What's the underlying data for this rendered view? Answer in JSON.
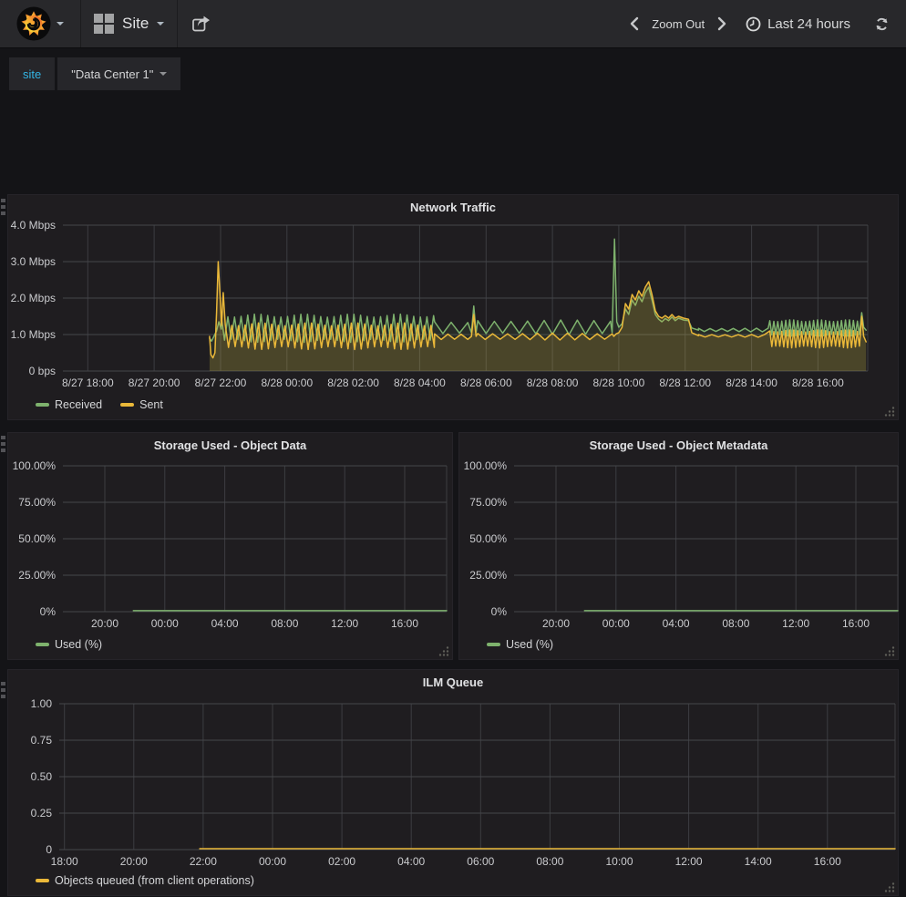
{
  "navbar": {
    "dashboard_picker": {
      "label": "Site"
    },
    "zoom_out_label": "Zoom Out",
    "time_range_label": "Last 24 hours"
  },
  "submenu": {
    "variable_label": "site",
    "variable_value": "\"Data Center 1\""
  },
  "colors": {
    "accent_link": "#33b5e5",
    "series_green": "#7EB26D",
    "series_yellow": "#EAB839",
    "panel_bg": "#1f1d20",
    "grid_line": "#45464a"
  },
  "charts": {
    "network": {
      "type": "line",
      "title": "Network Traffic",
      "x_domain": [
        17.25,
        41.5
      ],
      "y_domain": [
        0,
        4
      ],
      "x_ticks": [
        [
          18,
          "8/27 18:00"
        ],
        [
          20,
          "8/27 20:00"
        ],
        [
          22,
          "8/27 22:00"
        ],
        [
          24,
          "8/28 00:00"
        ],
        [
          26,
          "8/28 02:00"
        ],
        [
          28,
          "8/28 04:00"
        ],
        [
          30,
          "8/28 06:00"
        ],
        [
          32,
          "8/28 08:00"
        ],
        [
          34,
          "8/28 10:00"
        ],
        [
          36,
          "8/28 12:00"
        ],
        [
          38,
          "8/28 14:00"
        ],
        [
          40,
          "8/28 16:00"
        ]
      ],
      "y_ticks": [
        [
          0,
          "0 bps"
        ],
        [
          1,
          "1.0 Mbps"
        ],
        [
          2,
          "2.0 Mbps"
        ],
        [
          3,
          "3.0 Mbps"
        ],
        [
          4,
          "4.0 Mbps"
        ]
      ],
      "series": [
        {
          "name": "Received",
          "color": "#7EB26D",
          "fill": 0.1,
          "segments": [
            {
              "type": "points",
              "pts": [
                [
                  21.67,
                  0.9
                ],
                [
                  21.73,
                  0.82
                ],
                [
                  21.8,
                  0.95
                ],
                [
                  21.88,
                  1.1
                ],
                [
                  21.95,
                  1.35
                ],
                [
                  22.02,
                  1.15
                ]
              ]
            },
            {
              "type": "osc",
              "t0": 22.02,
              "t1": 28.45,
              "lo": 0.83,
              "hi": 1.52,
              "period": 0.2
            },
            {
              "type": "osc",
              "t0": 28.45,
              "t1": 29.5,
              "lo": 1.02,
              "hi": 1.35,
              "period": 0.5
            },
            {
              "type": "points",
              "pts": [
                [
                  29.56,
                  1.05
                ],
                [
                  29.63,
                  1.78
                ],
                [
                  29.7,
                  1.05
                ]
              ]
            },
            {
              "type": "osc",
              "t0": 29.75,
              "t1": 33.75,
              "lo": 1.02,
              "hi": 1.38,
              "period": 0.5
            },
            {
              "type": "points",
              "pts": [
                [
                  33.8,
                  1.06
                ],
                [
                  33.87,
                  3.62
                ],
                [
                  33.94,
                  1.35
                ],
                [
                  34.0,
                  1.2
                ],
                [
                  34.1,
                  1.3
                ],
                [
                  34.2,
                  1.7
                ],
                [
                  34.3,
                  1.55
                ],
                [
                  34.4,
                  1.95
                ],
                [
                  34.5,
                  1.8
                ],
                [
                  34.6,
                  2.05
                ],
                [
                  34.7,
                  1.9
                ],
                [
                  34.8,
                  2.15
                ],
                [
                  34.9,
                  2.3
                ],
                [
                  35.0,
                  1.95
                ],
                [
                  35.1,
                  1.55
                ],
                [
                  35.2,
                  1.42
                ],
                [
                  35.3,
                  1.35
                ],
                [
                  35.4,
                  1.44
                ],
                [
                  35.5,
                  1.38
                ],
                [
                  35.6,
                  1.48
                ],
                [
                  35.7,
                  1.38
                ],
                [
                  35.8,
                  1.45
                ],
                [
                  35.95,
                  1.4
                ],
                [
                  36.1,
                  1.38
                ],
                [
                  36.2,
                  1.18
                ],
                [
                  36.4,
                  1.12
                ]
              ]
            },
            {
              "type": "osc",
              "t0": 36.4,
              "t1": 38.55,
              "lo": 1.08,
              "hi": 1.17,
              "period": 0.35
            },
            {
              "type": "osc",
              "t0": 38.55,
              "t1": 41.28,
              "lo": 0.98,
              "hi": 1.38,
              "period": 0.12
            },
            {
              "type": "points",
              "pts": [
                [
                  41.32,
                  1.6
                ],
                [
                  41.38,
                  1.2
                ],
                [
                  41.45,
                  1.12
                ]
              ]
            }
          ]
        },
        {
          "name": "Sent",
          "color": "#EAB839",
          "fill": 0.18,
          "segments": [
            {
              "type": "points",
              "pts": [
                [
                  21.67,
                  0.95
                ],
                [
                  21.71,
                  0.45
                ],
                [
                  21.77,
                  0.36
                ],
                [
                  21.83,
                  0.5
                ],
                [
                  21.88,
                  1.6
                ],
                [
                  21.93,
                  3.0
                ],
                [
                  21.99,
                  2.0
                ],
                [
                  22.03,
                  1.25
                ],
                [
                  22.08,
                  2.15
                ],
                [
                  22.14,
                  1.3
                ]
              ]
            },
            {
              "type": "osc",
              "t0": 22.14,
              "t1": 28.45,
              "lo": 0.63,
              "hi": 1.28,
              "period": 0.2
            },
            {
              "type": "osc",
              "t0": 28.45,
              "t1": 29.5,
              "lo": 0.86,
              "hi": 1.02,
              "period": 0.4
            },
            {
              "type": "points",
              "pts": [
                [
                  29.56,
                  0.95
                ],
                [
                  29.63,
                  1.55
                ],
                [
                  29.7,
                  0.95
                ]
              ]
            },
            {
              "type": "osc",
              "t0": 29.75,
              "t1": 33.8,
              "lo": 0.86,
              "hi": 1.03,
              "period": 0.45
            },
            {
              "type": "points",
              "pts": [
                [
                  33.85,
                  0.95
                ],
                [
                  33.92,
                  1.02
                ],
                [
                  34.0,
                  1.05
                ],
                [
                  34.1,
                  1.2
                ],
                [
                  34.2,
                  1.85
                ],
                [
                  34.3,
                  1.7
                ],
                [
                  34.4,
                  2.1
                ],
                [
                  34.5,
                  1.95
                ],
                [
                  34.6,
                  2.2
                ],
                [
                  34.7,
                  2.05
                ],
                [
                  34.8,
                  2.3
                ],
                [
                  34.9,
                  2.45
                ],
                [
                  35.0,
                  2.1
                ],
                [
                  35.1,
                  1.65
                ],
                [
                  35.2,
                  1.5
                ],
                [
                  35.3,
                  1.45
                ],
                [
                  35.4,
                  1.52
                ],
                [
                  35.5,
                  1.45
                ],
                [
                  35.6,
                  1.55
                ],
                [
                  35.7,
                  1.45
                ],
                [
                  35.8,
                  1.5
                ],
                [
                  35.95,
                  1.45
                ],
                [
                  36.1,
                  1.42
                ],
                [
                  36.2,
                  1.05
                ],
                [
                  36.4,
                  0.97
                ]
              ]
            },
            {
              "type": "osc",
              "t0": 36.4,
              "t1": 38.55,
              "lo": 0.93,
              "hi": 1.0,
              "period": 0.4
            },
            {
              "type": "osc",
              "t0": 38.55,
              "t1": 41.28,
              "lo": 0.66,
              "hi": 1.1,
              "period": 0.12
            },
            {
              "type": "points",
              "pts": [
                [
                  41.32,
                  1.5
                ],
                [
                  41.38,
                  0.95
                ],
                [
                  41.45,
                  0.8
                ]
              ]
            }
          ]
        }
      ]
    },
    "storage_data": {
      "type": "line",
      "title": "Storage Used - Object Data",
      "x_domain": [
        17.2,
        42.8
      ],
      "y_domain": [
        0,
        100
      ],
      "x_ticks": [
        [
          20,
          "20:00"
        ],
        [
          24,
          "00:00"
        ],
        [
          28,
          "04:00"
        ],
        [
          32,
          "08:00"
        ],
        [
          36,
          "12:00"
        ],
        [
          40,
          "16:00"
        ]
      ],
      "y_ticks": [
        [
          0,
          "0%"
        ],
        [
          25,
          "25.00%"
        ],
        [
          50,
          "50.00%"
        ],
        [
          75,
          "75.00%"
        ],
        [
          100,
          "100.00%"
        ]
      ],
      "series": [
        {
          "name": "Used (%)",
          "color": "#7EB26D",
          "fill": 0,
          "segments": [
            {
              "type": "points",
              "pts": [
                [
                  21.9,
                  0.7
                ],
                [
                  42.8,
                  0.7
                ]
              ]
            }
          ]
        }
      ]
    },
    "storage_meta": {
      "type": "line",
      "title": "Storage Used - Object Metadata",
      "x_domain": [
        17.2,
        42.8
      ],
      "y_domain": [
        0,
        100
      ],
      "x_ticks": [
        [
          20,
          "20:00"
        ],
        [
          24,
          "00:00"
        ],
        [
          28,
          "04:00"
        ],
        [
          32,
          "08:00"
        ],
        [
          36,
          "12:00"
        ],
        [
          40,
          "16:00"
        ]
      ],
      "y_ticks": [
        [
          0,
          "0%"
        ],
        [
          25,
          "25.00%"
        ],
        [
          50,
          "50.00%"
        ],
        [
          75,
          "75.00%"
        ],
        [
          100,
          "100.00%"
        ]
      ],
      "series": [
        {
          "name": "Used (%)",
          "color": "#7EB26D",
          "fill": 0,
          "segments": [
            {
              "type": "points",
              "pts": [
                [
                  21.9,
                  0.7
                ],
                [
                  42.8,
                  0.7
                ]
              ]
            }
          ]
        }
      ]
    },
    "ilm": {
      "type": "line",
      "title": "ILM Queue",
      "x_domain": [
        17.85,
        41.95
      ],
      "y_domain": [
        0,
        1
      ],
      "x_ticks": [
        [
          18,
          "18:00"
        ],
        [
          20,
          "20:00"
        ],
        [
          22,
          "22:00"
        ],
        [
          24,
          "00:00"
        ],
        [
          26,
          "02:00"
        ],
        [
          28,
          "04:00"
        ],
        [
          30,
          "06:00"
        ],
        [
          32,
          "08:00"
        ],
        [
          34,
          "10:00"
        ],
        [
          36,
          "12:00"
        ],
        [
          38,
          "14:00"
        ],
        [
          40,
          "16:00"
        ]
      ],
      "y_ticks": [
        [
          0,
          "0"
        ],
        [
          0.25,
          "0.25"
        ],
        [
          0.5,
          "0.50"
        ],
        [
          0.75,
          "0.75"
        ],
        [
          1,
          "1.00"
        ]
      ],
      "series": [
        {
          "name": "Objects queued (from client operations)",
          "color": "#EAB839",
          "fill": 0,
          "segments": [
            {
              "type": "points",
              "pts": [
                [
                  21.9,
                  0.006
                ],
                [
                  41.95,
                  0.006
                ]
              ]
            }
          ]
        }
      ]
    }
  }
}
